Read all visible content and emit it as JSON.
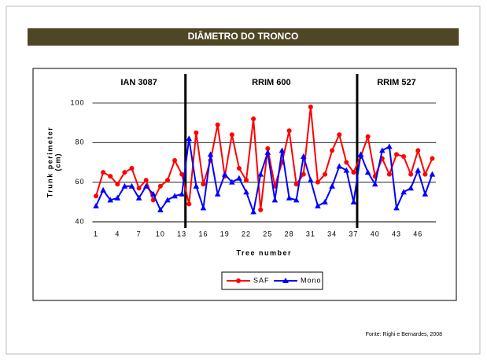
{
  "header": {
    "title": "DIÂMETRO DO TRONCO"
  },
  "chart_data": {
    "type": "line",
    "xlabel": "Tree number",
    "ylabel": "Trunk perimeter",
    "ylabel_unit": "(cm)",
    "categories": [
      1,
      null,
      null,
      4,
      null,
      null,
      7,
      null,
      null,
      10,
      null,
      null,
      13,
      null,
      null,
      16,
      null,
      null,
      19,
      null,
      null,
      22,
      null,
      null,
      25,
      null,
      null,
      28,
      null,
      null,
      31,
      null,
      null,
      34,
      null,
      null,
      37,
      null,
      null,
      40,
      null,
      null,
      43,
      null,
      null,
      46,
      null,
      null
    ],
    "series": [
      {
        "name": "SAF",
        "color": "#ff0000",
        "marker": "circle",
        "values": [
          53,
          65,
          63,
          59,
          65,
          67,
          57,
          61,
          51,
          58,
          61,
          71,
          64,
          49,
          85,
          59,
          71,
          89,
          63,
          84,
          67,
          61,
          92,
          46,
          77,
          58,
          70,
          86,
          59,
          64,
          98,
          60,
          64,
          76,
          84,
          70,
          65,
          73,
          83,
          63,
          72,
          64,
          74,
          73,
          64,
          76,
          64,
          72
        ]
      },
      {
        "name": "Mono",
        "color": "#0000ff",
        "marker": "triangle",
        "values": [
          48,
          56,
          51,
          52,
          58,
          58,
          52,
          58,
          54,
          46,
          51,
          53,
          54,
          82,
          58,
          47,
          74,
          54,
          64,
          60,
          62,
          55,
          45,
          64,
          75,
          51,
          76,
          52,
          51,
          73,
          61,
          48,
          50,
          58,
          68,
          66,
          50,
          74,
          65,
          59,
          76,
          78,
          47,
          55,
          57,
          66,
          54,
          64
        ]
      }
    ],
    "regions": [
      {
        "label": "IAN 3087",
        "start": 1,
        "end": 13
      },
      {
        "label": "RRIM 600",
        "start": 14,
        "end": 37
      },
      {
        "label": "RRIM 527",
        "start": 38,
        "end": 48
      }
    ],
    "ylim": [
      40,
      100
    ],
    "yticks": [
      40,
      60,
      80,
      100
    ],
    "grid": true,
    "legend": "bottom"
  },
  "footer": {
    "source": "Fonte: Righi e Bernardes, 2008"
  }
}
